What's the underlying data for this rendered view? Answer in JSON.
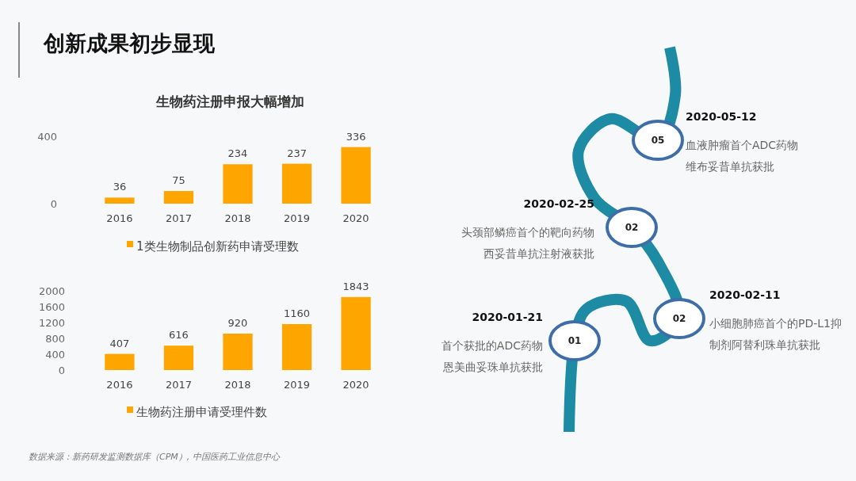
{
  "chart_data": [
    {
      "type": "bar",
      "title": "生物药注册申报大幅增加",
      "categories": [
        "2016",
        "2017",
        "2018",
        "2019",
        "2020"
      ],
      "series": [
        {
          "name": "1类生物制品创新药申请受理数",
          "color": "#ffa500",
          "values": [
            36,
            75,
            234,
            237,
            336
          ]
        }
      ],
      "ylim": [
        0,
        400
      ],
      "yticks": [
        0,
        400
      ],
      "data_labels": true,
      "legend": "bottom",
      "grid": false
    },
    {
      "type": "bar",
      "categories": [
        "2016",
        "2017",
        "2018",
        "2019",
        "2020"
      ],
      "series": [
        {
          "name": "生物药注册申请受理件数",
          "color": "#ffa500",
          "values": [
            407,
            616,
            920,
            1160,
            1843
          ]
        }
      ],
      "ylim": [
        0,
        2000
      ],
      "yticks": [
        0,
        400,
        800,
        1200,
        1600,
        2000
      ],
      "data_labels": true,
      "legend": "bottom",
      "grid": false
    },
    {
      "type": "other",
      "title": "创新成果初步显现",
      "annotations": [
        "05",
        "2020-05-12",
        "血液肿瘤首个ADC药物",
        "维布妥昔单抗获批",
        "02",
        "2020-02-25",
        "头颈部鳞癌首个的靶向药物",
        "西妥昔单抗注射液获批",
        "02",
        "2020-02-11",
        "小细胞肺癌首个的PD-L1抑",
        "制剂阿替利珠单抗获批",
        "01",
        "2020-01-21",
        "首个获批的ADC药物",
        "恩美曲妥珠单抗获批",
        "数据来源：新药研发监测数据库（CPM）, 中国医药工业信息中心"
      ]
    }
  ]
}
